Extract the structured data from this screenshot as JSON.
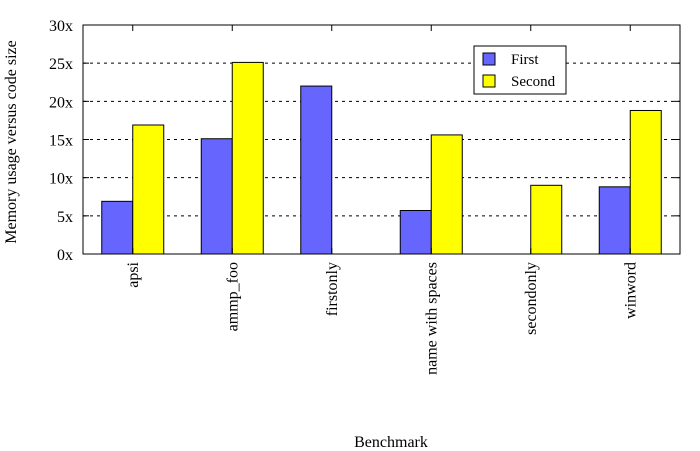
{
  "chart_data": {
    "type": "bar",
    "title": "",
    "xlabel": "Benchmark",
    "ylabel": "Memory usage versus code size",
    "categories": [
      "apsi",
      "ammp_foo",
      "firstonly",
      "name with spaces",
      "secondonly",
      "winword"
    ],
    "series": [
      {
        "name": "First",
        "color": "#6666ff",
        "values": [
          6.9,
          15.1,
          22.0,
          5.7,
          null,
          8.8
        ]
      },
      {
        "name": "Second",
        "color": "#ffff00",
        "values": [
          16.9,
          25.1,
          null,
          15.6,
          9.0,
          18.8
        ]
      }
    ],
    "ylim": [
      0,
      30
    ],
    "yticks": [
      0,
      5,
      10,
      15,
      20,
      25,
      30
    ],
    "ytick_labels": [
      "0x",
      "5x",
      "10x",
      "15x",
      "20x",
      "25x",
      "30x"
    ],
    "grid": true,
    "legend": "top-right"
  }
}
